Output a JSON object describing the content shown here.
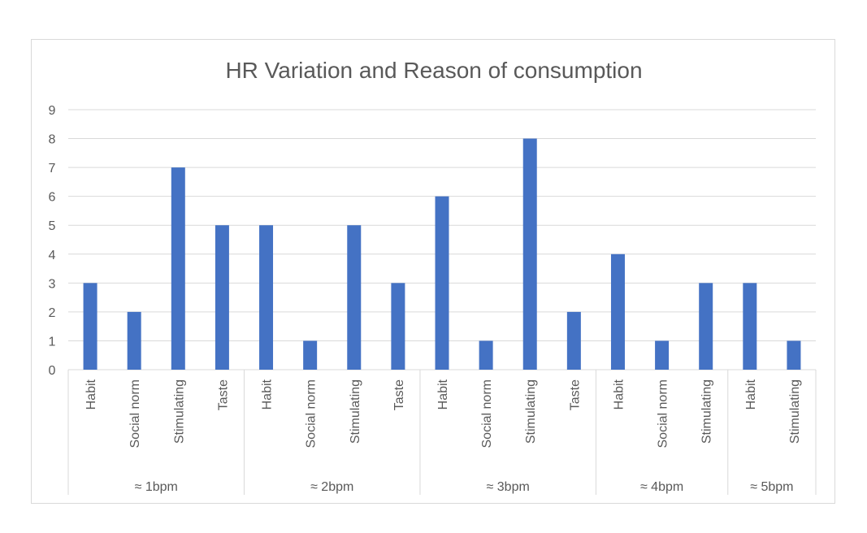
{
  "chart_data": {
    "type": "bar",
    "title": "HR Variation and Reason of consumption",
    "xlabel": "",
    "ylabel": "",
    "ylim": [
      0,
      9
    ],
    "yticks": [
      0,
      1,
      2,
      3,
      4,
      5,
      6,
      7,
      8,
      9
    ],
    "grid": true,
    "legend": "none",
    "bar_color": "#4472C4",
    "groups": [
      {
        "label": "≈ 1bpm",
        "categories": [
          "Habit",
          "Social norm",
          "Stimulating",
          "Taste"
        ],
        "values": [
          3,
          2,
          7,
          5
        ]
      },
      {
        "label": "≈ 2bpm",
        "categories": [
          "Habit",
          "Social norm",
          "Stimulating",
          "Taste"
        ],
        "values": [
          5,
          1,
          5,
          3
        ]
      },
      {
        "label": "≈ 3bpm",
        "categories": [
          "Habit",
          "Social norm",
          "Stimulating",
          "Taste"
        ],
        "values": [
          6,
          1,
          8,
          2
        ]
      },
      {
        "label": "≈ 4bpm",
        "categories": [
          "Habit",
          "Social norm",
          "Stimulating"
        ],
        "values": [
          4,
          1,
          3
        ]
      },
      {
        "label": "≈ 5bpm",
        "categories": [
          "Habit",
          "Stimulating"
        ],
        "values": [
          3,
          1
        ]
      }
    ]
  }
}
